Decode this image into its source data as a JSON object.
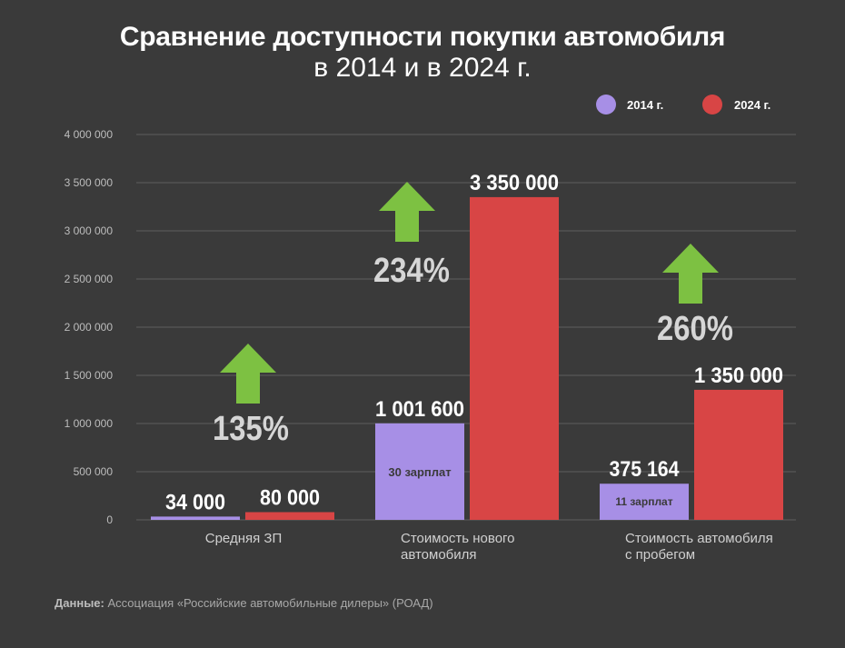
{
  "title": "Сравнение доступности покупки автомобиля",
  "subtitle": "в 2014 и в 2024 г.",
  "source": {
    "label": "Данные:",
    "text": "Ассоциация «Российские автомобильные дилеры» (РОАД)"
  },
  "chart_data": {
    "type": "bar",
    "categories": [
      [
        "Средняя ЗП"
      ],
      [
        "Стоимость нового",
        "автомобиля"
      ],
      [
        "Стоимость автомобиля",
        "с пробегом"
      ]
    ],
    "series": [
      {
        "name": "2014 г.",
        "color": "#a78fe6",
        "values": [
          34000,
          1001600,
          375164
        ],
        "value_labels": [
          "34 000",
          "1 001 600",
          "375 164"
        ],
        "inner_labels": [
          "",
          "30 зарплат",
          "11 зарплат"
        ]
      },
      {
        "name": "2024 г.",
        "color": "#d84545",
        "values": [
          80000,
          3350000,
          1350000
        ],
        "value_labels": [
          "80 000",
          "3 350 000",
          "1 350 000"
        ]
      }
    ],
    "growth_labels": [
      "135%",
      "234%",
      "260%"
    ],
    "ylim": [
      0,
      4000000
    ],
    "yticks": [
      0,
      500000,
      1000000,
      1500000,
      2000000,
      2500000,
      3000000,
      3500000,
      4000000
    ],
    "ytick_labels": [
      "0",
      "500 000",
      "1 000 000",
      "1 500 000",
      "2 000 000",
      "2 500 000",
      "3 000 000",
      "3 500 000",
      "4 000 000"
    ],
    "grid": true,
    "legend_position": "top-right",
    "colors": {
      "arrow": "#7dc142",
      "grid": "#5e5e5e",
      "axis_text": "#bdbdbd",
      "growth_text": "#d6d6d6"
    }
  }
}
